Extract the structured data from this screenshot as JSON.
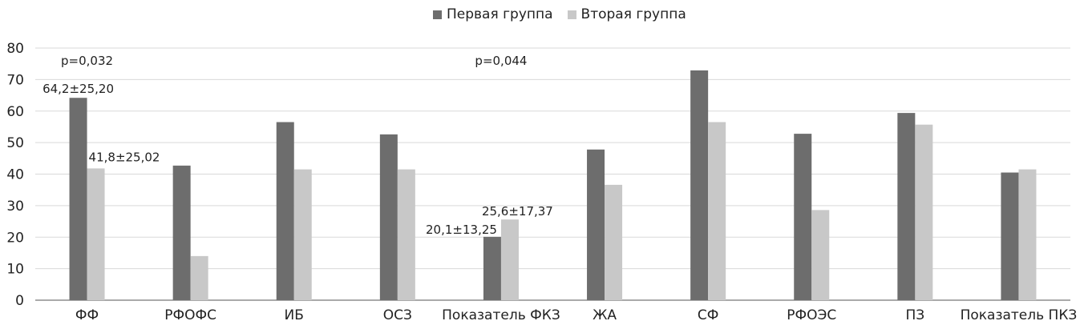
{
  "chart_data": {
    "type": "bar",
    "categories": [
      "ФФ",
      "РФОФС",
      "ИБ",
      "ОСЗ",
      "Показатель ФКЗ",
      "ЖА",
      "СФ",
      "РФОЭС",
      "ПЗ",
      "Показатель ПКЗ"
    ],
    "series": [
      {
        "name": "Первая группа",
        "values": [
          64.2,
          42.7,
          56.5,
          52.6,
          20.1,
          47.8,
          72.9,
          52.8,
          59.4,
          40.5
        ],
        "color": "#6d6d6d"
      },
      {
        "name": "Вторая группа",
        "values": [
          41.8,
          14.0,
          41.5,
          41.5,
          25.6,
          36.6,
          56.5,
          28.6,
          55.7,
          41.5
        ],
        "color": "#c8c8c8"
      }
    ],
    "ylim": [
      0,
      80
    ],
    "yticks": [
      0,
      10,
      20,
      30,
      40,
      50,
      60,
      70,
      80
    ],
    "grid": true,
    "legend_position": "top-center",
    "title": "",
    "xlabel": "",
    "ylabel": "",
    "annotations": [
      {
        "text": "p=0,032",
        "category": 0,
        "value": 76
      },
      {
        "text": "64,2±25,20",
        "category": 0,
        "series": 0,
        "value": 64.2
      },
      {
        "text": "41,8±25,02",
        "category": 0,
        "series": 1,
        "value": 41.8
      },
      {
        "text": "p=0,044",
        "category": 4,
        "value": 76
      },
      {
        "text": "20,1±13,25",
        "category": 4,
        "series": 0,
        "value": 20.1
      },
      {
        "text": "25,6±17,37",
        "category": 4,
        "series": 1,
        "value": 25.6
      }
    ]
  }
}
